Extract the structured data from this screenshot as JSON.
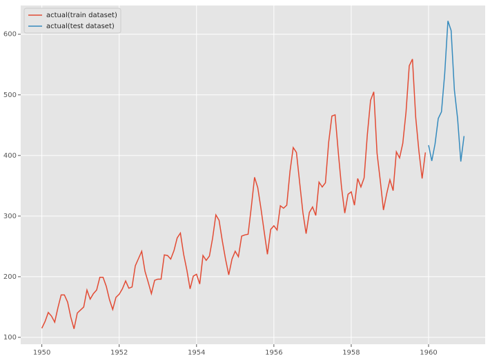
{
  "chart_data": {
    "type": "line",
    "xlim": [
      1949.454,
      1961.463
    ],
    "ylim": [
      88.6,
      647.4
    ],
    "xticks": [
      1950,
      1952,
      1954,
      1956,
      1958,
      1960
    ],
    "yticks": [
      100,
      200,
      300,
      400,
      500,
      600
    ],
    "grid": true,
    "legend": "upper left",
    "series": [
      {
        "name": "actual(train dataset)",
        "color": "#E24A33",
        "x": [
          1950.0,
          1950.083,
          1950.167,
          1950.25,
          1950.333,
          1950.417,
          1950.5,
          1950.583,
          1950.667,
          1950.75,
          1950.833,
          1950.917,
          1951.0,
          1951.083,
          1951.167,
          1951.25,
          1951.333,
          1951.417,
          1951.5,
          1951.583,
          1951.667,
          1951.75,
          1951.833,
          1951.917,
          1952.0,
          1952.083,
          1952.167,
          1952.25,
          1952.333,
          1952.417,
          1952.5,
          1952.583,
          1952.667,
          1952.75,
          1952.833,
          1952.917,
          1953.0,
          1953.083,
          1953.167,
          1953.25,
          1953.333,
          1953.417,
          1953.5,
          1953.583,
          1953.667,
          1953.75,
          1953.833,
          1953.917,
          1954.0,
          1954.083,
          1954.167,
          1954.25,
          1954.333,
          1954.417,
          1954.5,
          1954.583,
          1954.667,
          1954.75,
          1954.833,
          1954.917,
          1955.0,
          1955.083,
          1955.167,
          1955.25,
          1955.333,
          1955.417,
          1955.5,
          1955.583,
          1955.667,
          1955.75,
          1955.833,
          1955.917,
          1956.0,
          1956.083,
          1956.167,
          1956.25,
          1956.333,
          1956.417,
          1956.5,
          1956.583,
          1956.667,
          1956.75,
          1956.833,
          1956.917,
          1957.0,
          1957.083,
          1957.167,
          1957.25,
          1957.333,
          1957.417,
          1957.5,
          1957.583,
          1957.667,
          1957.75,
          1957.833,
          1957.917,
          1958.0,
          1958.083,
          1958.167,
          1958.25,
          1958.333,
          1958.417,
          1958.5,
          1958.583,
          1958.667,
          1958.75,
          1958.833,
          1958.917,
          1959.0,
          1959.083,
          1959.167,
          1959.25,
          1959.333,
          1959.417,
          1959.5,
          1959.583,
          1959.667,
          1959.75,
          1959.833,
          1959.917
        ],
        "values": [
          115,
          126,
          141,
          135,
          125,
          149,
          170,
          170,
          158,
          133,
          114,
          140,
          145,
          150,
          178,
          163,
          172,
          178,
          199,
          199,
          184,
          162,
          146,
          166,
          171,
          180,
          193,
          181,
          183,
          218,
          230,
          242,
          209,
          191,
          172,
          194,
          196,
          196,
          236,
          235,
          229,
          243,
          264,
          272,
          237,
          211,
          180,
          201,
          204,
          188,
          235,
          227,
          234,
          264,
          302,
          293,
          259,
          229,
          203,
          229,
          242,
          233,
          267,
          269,
          270,
          315,
          364,
          347,
          312,
          274,
          237,
          278,
          284,
          277,
          317,
          313,
          318,
          374,
          413,
          405,
          355,
          306,
          271,
          306,
          315,
          301,
          356,
          348,
          355,
          422,
          465,
          467,
          404,
          347,
          305,
          336,
          340,
          318,
          362,
          348,
          363,
          435,
          491,
          505,
          404,
          359,
          310,
          337,
          360,
          342,
          406,
          396,
          420,
          472,
          548,
          559,
          463,
          407,
          362,
          405
        ]
      },
      {
        "name": "actual(test dataset)",
        "color": "#348ABD",
        "x": [
          1960.0,
          1960.083,
          1960.167,
          1960.25,
          1960.333,
          1960.417,
          1960.5,
          1960.583,
          1960.667,
          1960.75,
          1960.833,
          1960.917
        ],
        "values": [
          417,
          391,
          419,
          461,
          472,
          535,
          622,
          606,
          508,
          461,
          390,
          432
        ]
      }
    ]
  }
}
